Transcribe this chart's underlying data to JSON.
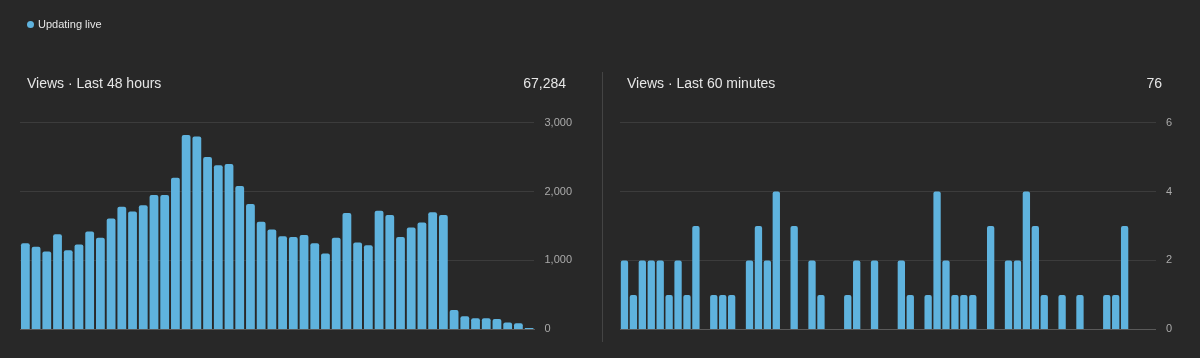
{
  "chart_data": [
    {
      "type": "other",
      "annotations": [
        "Updating live"
      ]
    },
    {
      "type": "bar",
      "title": "Views · Last 48 hours",
      "annotations": [
        "67,284"
      ],
      "categories": [
        null,
        null,
        null,
        null,
        null,
        null,
        null,
        null,
        null,
        null,
        null,
        null,
        null,
        null,
        null,
        null,
        null,
        null,
        null,
        null,
        null,
        null,
        null,
        null,
        null,
        null,
        null,
        null,
        null,
        null,
        null,
        null,
        null,
        null,
        null,
        null,
        null,
        null,
        null,
        null,
        null,
        null,
        null,
        null,
        null,
        null,
        null,
        null
      ],
      "values": [
        1250,
        1200,
        1130,
        1380,
        1150,
        1230,
        1420,
        1330,
        1610,
        1780,
        1710,
        1800,
        1950,
        1950,
        2200,
        2820,
        2800,
        2500,
        2380,
        2400,
        2080,
        1820,
        1560,
        1450,
        1350,
        1340,
        1370,
        1250,
        1100,
        1330,
        1690,
        1260,
        1220,
        1720,
        1660,
        1340,
        1480,
        1550,
        1700,
        1660,
        280,
        190,
        160,
        160,
        150,
        100,
        90,
        20
      ],
      "color": "#5fb3de",
      "ylim": [
        0,
        3000
      ],
      "yticks": [
        {
          "value": 0,
          "label": "0"
        },
        {
          "value": 1000,
          "label": "1,000"
        },
        {
          "value": 2000,
          "label": "2,000"
        },
        {
          "value": 3000,
          "label": "3,000"
        }
      ],
      "grid": "y",
      "tick_labels": "y",
      "legend": false
    },
    {
      "type": "bar",
      "title": "Views · Last 60 minutes",
      "annotations": [
        "76"
      ],
      "categories": [
        null,
        null,
        null,
        null,
        null,
        null,
        null,
        null,
        null,
        null,
        null,
        null,
        null,
        null,
        null,
        null,
        null,
        null,
        null,
        null,
        null,
        null,
        null,
        null,
        null,
        null,
        null,
        null,
        null,
        null,
        null,
        null,
        null,
        null,
        null,
        null,
        null,
        null,
        null,
        null,
        null,
        null,
        null,
        null,
        null,
        null,
        null,
        null,
        null,
        null,
        null,
        null,
        null,
        null,
        null,
        null,
        null,
        null,
        null,
        null
      ],
      "values": [
        2,
        1,
        2,
        2,
        2,
        1,
        2,
        1,
        3,
        0,
        1,
        1,
        1,
        0,
        2,
        3,
        2,
        4,
        0,
        3,
        0,
        2,
        1,
        0,
        0,
        1,
        2,
        0,
        2,
        0,
        0,
        2,
        1,
        0,
        1,
        4,
        2,
        1,
        1,
        1,
        0,
        3,
        0,
        2,
        2,
        4,
        3,
        1,
        0,
        1,
        0,
        1,
        0,
        0,
        1,
        1,
        3,
        0,
        0,
        0
      ],
      "color": "#5fb3de",
      "ylim": [
        0,
        6
      ],
      "yticks": [
        0,
        2,
        4,
        6
      ],
      "grid": "y",
      "tick_labels": "y",
      "legend": false
    }
  ]
}
